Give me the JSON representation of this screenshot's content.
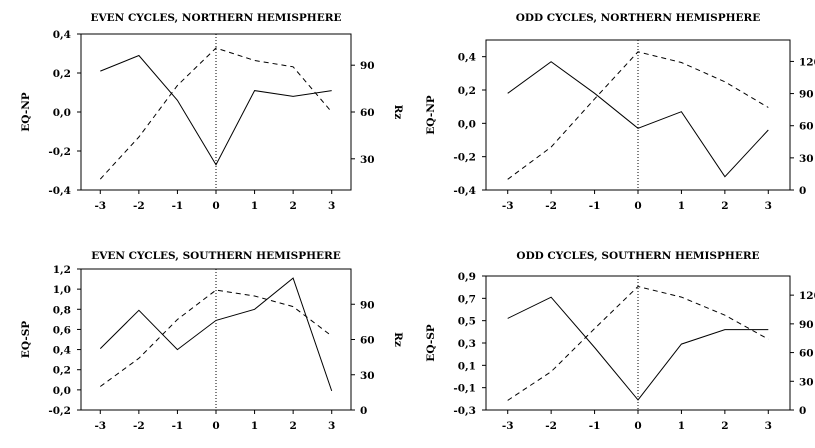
{
  "chart_data": [
    {
      "type": "line",
      "title": "EVEN CYCLES, NORTHERN HEMISPHERE",
      "xlabel": "",
      "ylabel": "EQ-NP",
      "y2label": "Rz",
      "x": [
        -3,
        -2,
        -1,
        0,
        1,
        2,
        3
      ],
      "xticks": [
        "-3",
        "-2",
        "-1",
        "0",
        "1",
        "2",
        "3"
      ],
      "ylim": [
        -0.4,
        0.4
      ],
      "yticks": [
        -0.4,
        -0.2,
        0.0,
        0.2,
        0.4
      ],
      "ytick_labels": [
        "-0,4",
        "-0,2",
        "0,0",
        "0,2",
        "0,4"
      ],
      "y2lim": [
        10,
        110
      ],
      "y2ticks": [
        30,
        60,
        90
      ],
      "y2tick_labels": [
        "30",
        "60",
        "90"
      ],
      "series": [
        {
          "axis": "left",
          "style": "solid",
          "values": [
            0.21,
            0.29,
            0.06,
            -0.27,
            0.11,
            0.08,
            0.11
          ]
        },
        {
          "axis": "right",
          "style": "dashed",
          "values": [
            17,
            44,
            77,
            101,
            93,
            89,
            60
          ]
        }
      ]
    },
    {
      "type": "line",
      "title": "ODD CYCLES, NORTHERN HEMISPHERE",
      "xlabel": "",
      "ylabel": "EQ-NP",
      "y2label": "Rz",
      "x": [
        -3,
        -2,
        -1,
        0,
        1,
        2,
        3
      ],
      "xticks": [
        "-3",
        "-2",
        "-1",
        "0",
        "1",
        "2",
        "3"
      ],
      "ylim": [
        -0.4,
        0.5
      ],
      "yticks": [
        -0.4,
        -0.2,
        0.0,
        0.2,
        0.4
      ],
      "ytick_labels": [
        "-0,4",
        "-0,2",
        "0,0",
        "0,2",
        "0,4"
      ],
      "y2lim": [
        0,
        140
      ],
      "y2ticks": [
        0,
        30,
        60,
        90,
        120
      ],
      "y2tick_labels": [
        "0",
        "30",
        "60",
        "90",
        "120"
      ],
      "series": [
        {
          "axis": "left",
          "style": "solid",
          "values": [
            0.18,
            0.37,
            0.18,
            -0.03,
            0.07,
            -0.32,
            -0.04
          ]
        },
        {
          "axis": "right",
          "style": "dashed",
          "values": [
            10,
            40,
            85,
            129,
            119,
            101,
            77
          ]
        }
      ]
    },
    {
      "type": "line",
      "title": "EVEN CYCLES, SOUTHERN HEMISPHERE",
      "xlabel": "",
      "ylabel": "EQ-SP",
      "y2label": "Rz",
      "x": [
        -3,
        -2,
        -1,
        0,
        1,
        2,
        3
      ],
      "xticks": [
        "-3",
        "-2",
        "-1",
        "0",
        "1",
        "2",
        "3"
      ],
      "ylim": [
        -0.2,
        1.2
      ],
      "yticks": [
        -0.2,
        0.0,
        0.2,
        0.4,
        0.6,
        0.8,
        1.0,
        1.2
      ],
      "ytick_labels": [
        "-0,2",
        "0,0",
        "0,2",
        "0,4",
        "0,6",
        "0,8",
        "1,0",
        "1,2"
      ],
      "y2lim": [
        0,
        120
      ],
      "y2ticks": [
        0,
        30,
        60,
        90
      ],
      "y2tick_labels": [
        "0",
        "30",
        "60",
        "90"
      ],
      "series": [
        {
          "axis": "left",
          "style": "solid",
          "values": [
            0.41,
            0.79,
            0.4,
            0.69,
            0.8,
            1.11,
            -0.01
          ]
        },
        {
          "axis": "right",
          "style": "dashed",
          "values": [
            20,
            44,
            77,
            102,
            97,
            88,
            63
          ]
        }
      ]
    },
    {
      "type": "line",
      "title": "ODD CYCLES, SOUTHERN HEMISPHERE",
      "xlabel": "",
      "ylabel": "EQ-SP",
      "y2label": "",
      "x": [
        -3,
        -2,
        -1,
        0,
        1,
        2,
        3
      ],
      "xticks": [
        "-3",
        "-2",
        "-1",
        "0",
        "1",
        "2",
        "3"
      ],
      "ylim": [
        -0.3,
        0.9
      ],
      "yticks": [
        -0.3,
        -0.1,
        0.1,
        0.3,
        0.5,
        0.7,
        0.9
      ],
      "ytick_labels": [
        "-0,3",
        "-0,1",
        "0,1",
        "0,3",
        "0,5",
        "0,7",
        "0,9"
      ],
      "y2lim": [
        0,
        140
      ],
      "y2ticks": [
        0,
        30,
        60,
        90,
        120
      ],
      "y2tick_labels": [
        "0",
        "30",
        "60",
        "90",
        "120"
      ],
      "series": [
        {
          "axis": "left",
          "style": "solid",
          "values": [
            0.52,
            0.71,
            0.26,
            -0.21,
            0.29,
            0.42,
            0.42
          ]
        },
        {
          "axis": "right",
          "style": "dashed",
          "values": [
            10,
            40,
            85,
            129,
            118,
            99,
            74
          ]
        }
      ]
    }
  ]
}
